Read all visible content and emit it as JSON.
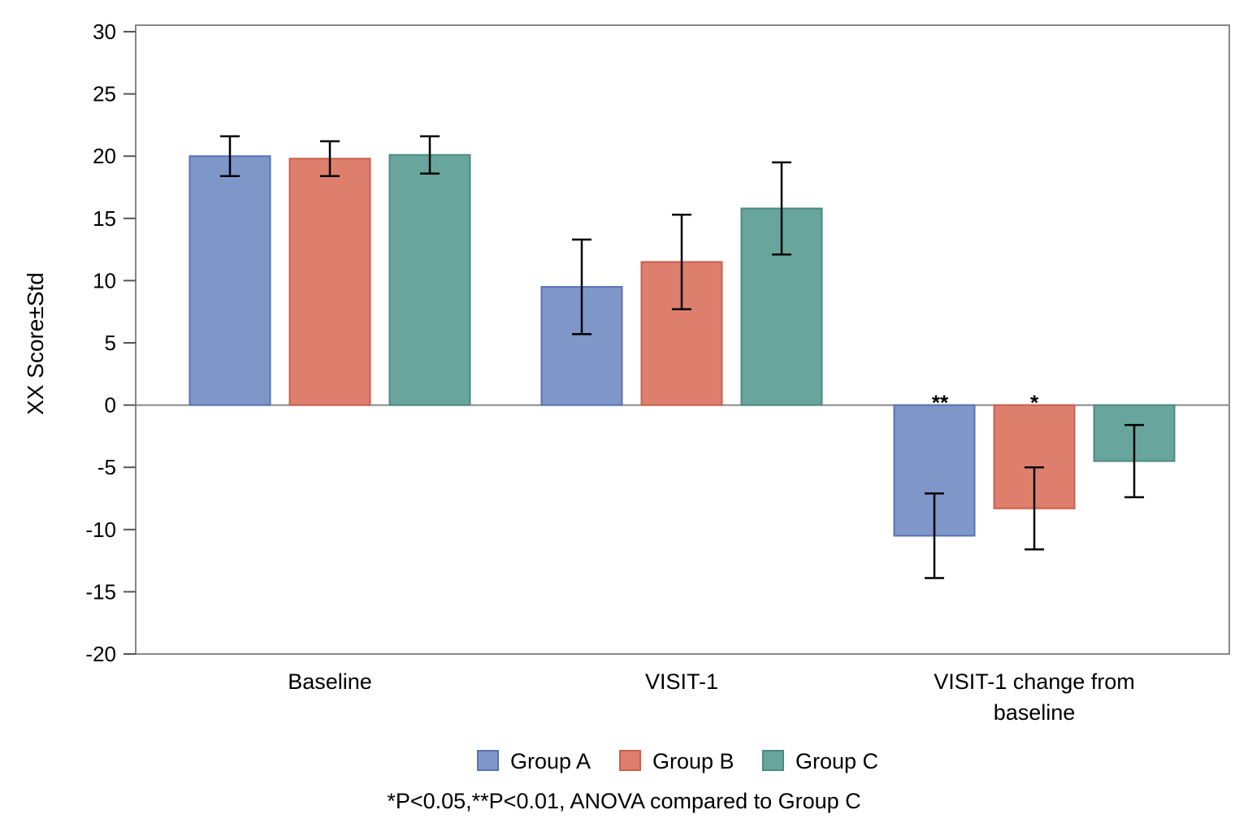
{
  "chart_data": {
    "type": "bar",
    "title": "",
    "xlabel": "",
    "ylabel": "XX Score±Std",
    "ylim": [
      -20,
      30
    ],
    "yticks": [
      30,
      25,
      20,
      15,
      10,
      5,
      0,
      -5,
      -10,
      -15,
      -20
    ],
    "ytick_labels": [
      "30",
      "25",
      "20",
      "15",
      "10",
      "5",
      "0",
      "-5",
      "-10",
      "-15",
      "-20"
    ],
    "grid": false,
    "legend_position": "bottom",
    "categories": [
      [
        "Baseline"
      ],
      [
        "VISIT-1"
      ],
      [
        "VISIT-1 change from",
        "baseline"
      ]
    ],
    "series": [
      {
        "name": "Group A",
        "color": "#7f96c9",
        "edge": "#5a72b5",
        "values": [
          20.0,
          9.5,
          -10.5
        ],
        "std": [
          1.6,
          3.8,
          3.4
        ],
        "annotations": [
          "",
          "",
          "**"
        ]
      },
      {
        "name": "Group B",
        "color": "#de7f6e",
        "edge": "#c8604f",
        "values": [
          19.8,
          11.5,
          -8.3
        ],
        "std": [
          1.4,
          3.8,
          3.3
        ],
        "annotations": [
          "",
          "",
          "*"
        ]
      },
      {
        "name": "Group C",
        "color": "#68a69d",
        "edge": "#4c8a80",
        "values": [
          20.1,
          15.8,
          -4.5
        ],
        "std": [
          1.5,
          3.7,
          2.9
        ],
        "annotations": [
          "",
          "",
          ""
        ]
      }
    ],
    "footnote": "*P<0.05,**P<0.01, ANOVA compared to Group C"
  }
}
